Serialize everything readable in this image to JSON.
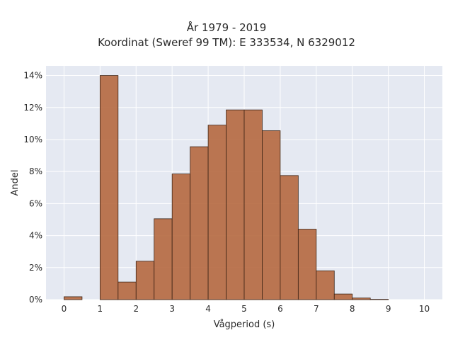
{
  "chart_data": {
    "type": "bar",
    "title_line1": "År 1979 - 2019",
    "title_line2": "Koordinat (Sweref 99 TM): E 333534, N 6329012",
    "xlabel": "Vågperiod (s)",
    "ylabel": "Andel",
    "bin_width": 0.5,
    "bins": [
      {
        "start": 0.0,
        "value": 0.18
      },
      {
        "start": 0.5,
        "value": 0.0
      },
      {
        "start": 1.0,
        "value": 14.0
      },
      {
        "start": 1.5,
        "value": 1.1
      },
      {
        "start": 2.0,
        "value": 2.4
      },
      {
        "start": 2.5,
        "value": 5.05
      },
      {
        "start": 3.0,
        "value": 7.85
      },
      {
        "start": 3.5,
        "value": 9.55
      },
      {
        "start": 4.0,
        "value": 10.9
      },
      {
        "start": 4.5,
        "value": 11.85
      },
      {
        "start": 5.0,
        "value": 11.85
      },
      {
        "start": 5.5,
        "value": 10.55
      },
      {
        "start": 6.0,
        "value": 7.75
      },
      {
        "start": 6.5,
        "value": 4.4
      },
      {
        "start": 7.0,
        "value": 1.8
      },
      {
        "start": 7.5,
        "value": 0.35
      },
      {
        "start": 8.0,
        "value": 0.1
      },
      {
        "start": 8.5,
        "value": 0.02
      }
    ],
    "xlim": [
      -0.5,
      10.5
    ],
    "ylim": [
      0,
      14.6
    ],
    "x_ticks": [
      "0",
      "1",
      "2",
      "3",
      "4",
      "5",
      "6",
      "7",
      "8",
      "9",
      "10"
    ],
    "y_ticks": [
      "0%",
      "2%",
      "4%",
      "6%",
      "8%",
      "10%",
      "12%",
      "14%"
    ],
    "grid": true,
    "colors": {
      "bar_fill": "#b5683f",
      "bar_stroke": "#3d2416",
      "plot_bg": "#e5e9f2",
      "grid": "#ffffff"
    }
  }
}
